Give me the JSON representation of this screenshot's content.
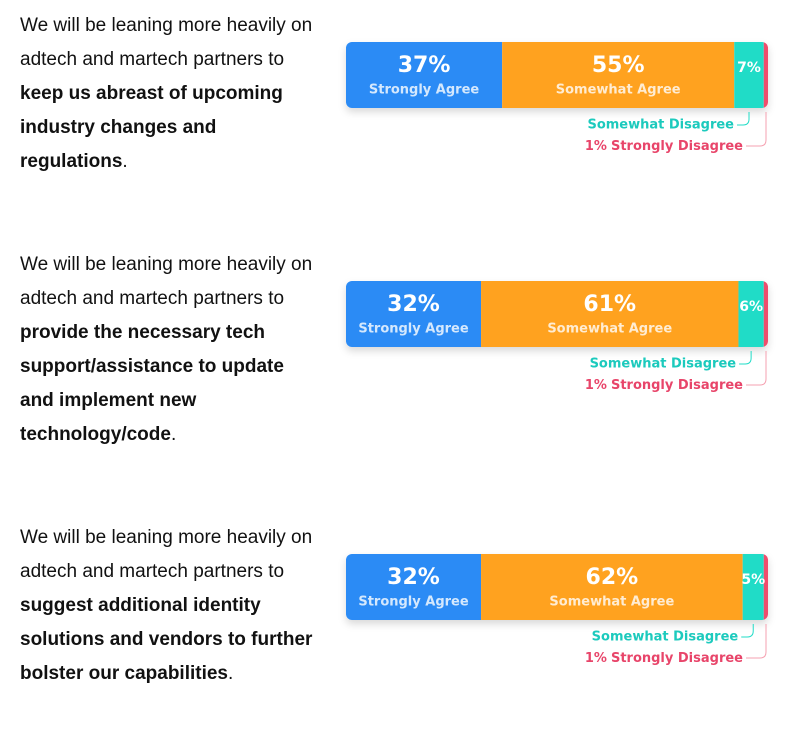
{
  "chart_data": [
    {
      "type": "stacked_bar",
      "title": [
        {
          "text": "We will be leaning more heavily on adtech and martech partners to ",
          "bold": false
        },
        {
          "text": "keep us abreast of upcoming industry changes and regulations",
          "bold": true
        },
        {
          "text": ".",
          "bold": false
        }
      ],
      "series": [
        {
          "name": "Strongly Agree",
          "color": "#2b8bf5",
          "values": [
            37
          ],
          "value_labels": [
            "37%"
          ]
        },
        {
          "name": "Somewhat Agree",
          "color": "#ffa21f",
          "values": [
            55
          ],
          "value_labels": [
            "55%"
          ]
        },
        {
          "name": "Somewhat Disagree",
          "color": "#20dcc7",
          "values": [
            7
          ],
          "value_labels": [
            "7%"
          ]
        },
        {
          "name": "Strongly Disagree",
          "color": "#ef4d6c",
          "values": [
            1
          ],
          "value_labels": [
            "1%"
          ]
        }
      ]
    },
    {
      "type": "stacked_bar",
      "title": [
        {
          "text": "We will be leaning more heavily on adtech and martech partners to ",
          "bold": false
        },
        {
          "text": "provide the necessary tech support/assistance to update and implement new technology/code",
          "bold": true
        },
        {
          "text": ".",
          "bold": false
        }
      ],
      "series": [
        {
          "name": "Strongly Agree",
          "color": "#2b8bf5",
          "values": [
            32
          ],
          "value_labels": [
            "32%"
          ]
        },
        {
          "name": "Somewhat Agree",
          "color": "#ffa21f",
          "values": [
            61
          ],
          "value_labels": [
            "61%"
          ]
        },
        {
          "name": "Somewhat Disagree",
          "color": "#20dcc7",
          "values": [
            6
          ],
          "value_labels": [
            "6%"
          ]
        },
        {
          "name": "Strongly Disagree",
          "color": "#ef4d6c",
          "values": [
            1
          ],
          "value_labels": [
            "1%"
          ]
        }
      ]
    },
    {
      "type": "stacked_bar",
      "title": [
        {
          "text": "We will be leaning more heavily on adtech and martech partners to ",
          "bold": false
        },
        {
          "text": "suggest additional identity solutions and vendors to further bolster our capabilities",
          "bold": true
        },
        {
          "text": ".",
          "bold": false
        }
      ],
      "series": [
        {
          "name": "Strongly Agree",
          "color": "#2b8bf5",
          "values": [
            32
          ],
          "value_labels": [
            "32%"
          ]
        },
        {
          "name": "Somewhat Agree",
          "color": "#ffa21f",
          "values": [
            62
          ],
          "value_labels": [
            "62%"
          ]
        },
        {
          "name": "Somewhat Disagree",
          "color": "#20dcc7",
          "values": [
            5
          ],
          "value_labels": [
            "5%"
          ]
        },
        {
          "name": "Strongly Disagree",
          "color": "#ef4d6c",
          "values": [
            1
          ],
          "value_labels": [
            "1%"
          ]
        }
      ]
    }
  ]
}
